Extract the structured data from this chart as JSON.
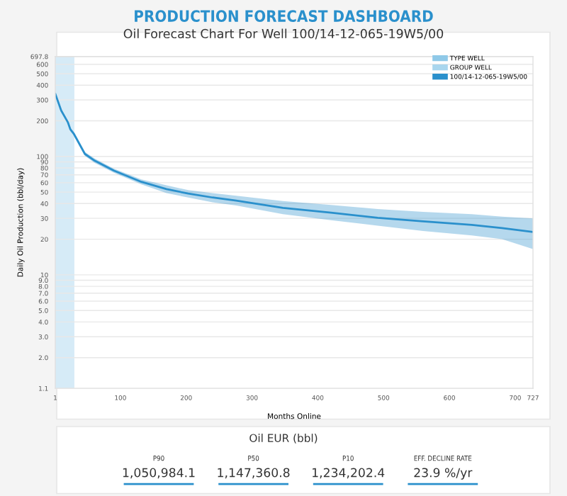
{
  "chart_data": [
    {
      "type": "line",
      "title": "PRODUCTION FORECAST DASHBOARD",
      "subtitle": "Oil Forecast Chart For Well 100/14-12-065-19W5/00",
      "xlabel": "Months Online",
      "ylabel": "Daily Oil Production (bbl/day)",
      "log": "y",
      "x": [
        1,
        10,
        20,
        24,
        29,
        46,
        61,
        90,
        132,
        170,
        203,
        240,
        276,
        347,
        420,
        491,
        560,
        634,
        680,
        727
      ],
      "series": [
        {
          "name": "TYPE WELL",
          "color": "#8fc9e8",
          "values": [
            null,
            null,
            null,
            null,
            null,
            null,
            null,
            null,
            null,
            null,
            null,
            null,
            null,
            null,
            null,
            null,
            null,
            null,
            null,
            null
          ]
        },
        {
          "name": "GROUP WELL",
          "color": "#a9d6ee",
          "values": [
            null,
            null,
            null,
            null,
            null,
            null,
            null,
            null,
            null,
            null,
            null,
            null,
            null,
            null,
            null,
            null,
            null,
            null,
            null,
            null
          ]
        },
        {
          "name": "100/14-12-065-19W5/00",
          "color": "#2a90cc",
          "values": [
            338,
            244,
            195,
            169,
            156,
            105,
            92,
            76,
            61,
            53,
            48.6,
            45,
            42.3,
            36.8,
            33.5,
            30.3,
            28.3,
            26.4,
            24.8,
            23
          ],
          "lower": [
            331,
            238,
            190,
            164,
            151,
            101,
            88,
            73,
            58,
            49,
            45,
            41,
            38.5,
            32.5,
            29,
            26,
            23.5,
            21.5,
            20,
            16.5
          ],
          "upper": [
            345,
            250,
            200,
            174,
            161,
            109,
            96,
            79,
            64,
            57,
            52,
            49,
            46.5,
            42,
            39,
            36,
            34,
            32.5,
            31,
            30
          ]
        }
      ],
      "xlim": [
        1,
        727
      ],
      "xticks": [
        1,
        100,
        200,
        300,
        400,
        500,
        600,
        700,
        727
      ],
      "ylim": [
        1.1,
        697.8
      ],
      "yticks": [
        1.1,
        {
          "value": 2,
          "label": "2.0"
        },
        {
          "value": 3,
          "label": "3.0"
        },
        {
          "value": 4,
          "label": "4.0"
        },
        {
          "value": 5,
          "label": "5.0"
        },
        {
          "value": 6,
          "label": "6.0"
        },
        {
          "value": 7,
          "label": "7.0"
        },
        {
          "value": 8,
          "label": "8.0"
        },
        {
          "value": 9,
          "label": "9.0"
        },
        10,
        20,
        30,
        40,
        50,
        60,
        70,
        80,
        90,
        100,
        200,
        300,
        400,
        500,
        600,
        697.8
      ],
      "bands": [
        {
          "axis": "x",
          "from": 1,
          "to": 30,
          "color": "#d6ebf7"
        }
      ],
      "grid": "y",
      "legend": "top right",
      "marker": "none",
      "line_style": "solid"
    },
    {
      "type": "other",
      "title": "Oil EUR (bbl)",
      "categories": [
        "P90",
        "P50",
        "P10",
        "EFF. DECLINE RATE"
      ],
      "value_labels": [
        "1,050,984.1",
        "1,147,360.8",
        "1,234,202.4",
        "23.9 %/yr"
      ]
    }
  ]
}
